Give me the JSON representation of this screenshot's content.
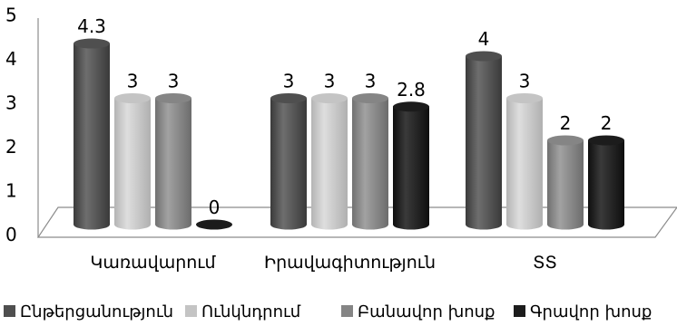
{
  "chart_data": {
    "type": "bar",
    "categories": [
      "Կառավարում",
      "Իրավագիտություն",
      "ՏՏ"
    ],
    "series": [
      {
        "name": "Ընթերցանություն",
        "values": [
          4.3,
          3,
          4
        ]
      },
      {
        "name": "Ունկնդրում",
        "values": [
          3,
          3,
          3
        ]
      },
      {
        "name": "Բանավոր խոսք",
        "values": [
          3,
          3,
          2
        ]
      },
      {
        "name": "Գրավոր խոսք",
        "values": [
          0,
          2.8,
          2
        ]
      }
    ],
    "data_labels": [
      [
        "4.3",
        "3",
        "3",
        "0"
      ],
      [
        "3",
        "3",
        "3",
        "2.8"
      ],
      [
        "4",
        "3",
        "2",
        "2"
      ]
    ],
    "ylim": [
      0,
      5
    ],
    "yticks": [
      "0",
      "1",
      "2",
      "3",
      "4",
      "5"
    ],
    "style": "3d-cylinder",
    "legend_position": "bottom",
    "colors": [
      "#4f4f4f",
      "#c4c4c4",
      "#858585",
      "#1c1c1c"
    ]
  }
}
